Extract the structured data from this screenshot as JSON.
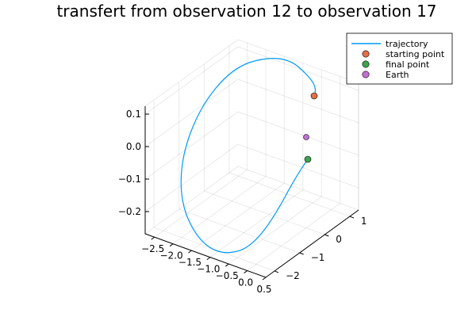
{
  "chart_data": {
    "type": "line3d",
    "title": "transfert from observation 12 to observation 17",
    "axes": {
      "x": {
        "ticks": [
          -2.5,
          -2.0,
          -1.5,
          -1.0,
          -0.5,
          0.0,
          0.5
        ],
        "tick_labels": [
          "−2.5",
          "−2.0",
          "−1.5",
          "−1.0",
          "−0.5",
          "0.0",
          "0.5"
        ]
      },
      "y": {
        "ticks": [
          -2,
          -1,
          0,
          1
        ],
        "tick_labels": [
          "−2",
          "−1",
          "0",
          "1"
        ]
      },
      "z": {
        "ticks": [
          -0.2,
          -0.1,
          0.0,
          0.1
        ],
        "tick_labels": [
          "−0.2",
          "−0.1",
          "0.0",
          "0.1"
        ]
      }
    },
    "grid": true,
    "legend_position": "top-right",
    "series": [
      {
        "name": "trajectory",
        "kind": "line",
        "color": "#009AFA"
      },
      {
        "name": "starting point",
        "kind": "marker",
        "color": "#E26F46"
      },
      {
        "name": "final point",
        "kind": "marker",
        "color": "#3DA44D"
      },
      {
        "name": "Earth",
        "kind": "marker",
        "color": "#C271D2"
      }
    ]
  }
}
